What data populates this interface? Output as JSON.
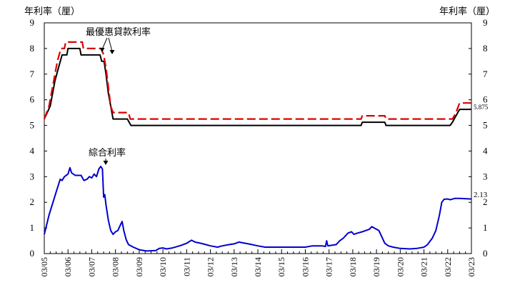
{
  "chart_data": {
    "type": "line",
    "y_unit_label": "年利率（厘）",
    "ylim": [
      0,
      9
    ],
    "yticks": [
      0,
      1,
      2,
      3,
      4,
      5,
      6,
      7,
      8,
      9
    ],
    "xlim": [
      2005.0,
      2023.0
    ],
    "x_tick_labels": [
      "03/05",
      "03/06",
      "03/07",
      "03/08",
      "03/09",
      "03/10",
      "03/11",
      "03/12",
      "03/13",
      "03/14",
      "03/15",
      "03/16",
      "03/17",
      "03/18",
      "03/19",
      "03/20",
      "03/21",
      "03/22",
      "03/23"
    ],
    "x_tick_values": [
      2005,
      2006,
      2007,
      2008,
      2009,
      2010,
      2011,
      2012,
      2013,
      2014,
      2015,
      2016,
      2017,
      2018,
      2019,
      2020,
      2021,
      2022,
      2023
    ],
    "annotations": {
      "prime_label": "最優惠貸款利率",
      "composite_label": "綜合利率",
      "prime_end_value": "5.875",
      "composite_end_value": "2.13"
    },
    "series": [
      {
        "key": "prime_low",
        "color": "#000000",
        "style": "solid",
        "points": [
          [
            2005.0,
            5.25
          ],
          [
            2005.25,
            5.75
          ],
          [
            2005.45,
            6.75
          ],
          [
            2005.6,
            7.25
          ],
          [
            2005.75,
            7.75
          ],
          [
            2005.95,
            7.75
          ],
          [
            2006.0,
            8.0
          ],
          [
            2006.5,
            8.0
          ],
          [
            2006.55,
            7.75
          ],
          [
            2007.35,
            7.75
          ],
          [
            2007.42,
            7.5
          ],
          [
            2007.52,
            7.5
          ],
          [
            2007.6,
            7.0
          ],
          [
            2007.7,
            6.25
          ],
          [
            2007.8,
            5.75
          ],
          [
            2007.9,
            5.25
          ],
          [
            2008.5,
            5.25
          ],
          [
            2008.65,
            5.0
          ],
          [
            2018.35,
            5.0
          ],
          [
            2018.4,
            5.125
          ],
          [
            2019.35,
            5.125
          ],
          [
            2019.4,
            5.0
          ],
          [
            2022.0,
            5.0
          ],
          [
            2022.1,
            5.0
          ],
          [
            2022.2,
            5.125
          ],
          [
            2022.5,
            5.625
          ],
          [
            2023.0,
            5.625
          ]
        ]
      },
      {
        "key": "prime_high",
        "color": "#dd0000",
        "style": "dashed",
        "points": [
          [
            2005.0,
            5.25
          ],
          [
            2005.2,
            5.75
          ],
          [
            2005.4,
            6.75
          ],
          [
            2005.55,
            7.5
          ],
          [
            2005.7,
            8.0
          ],
          [
            2005.85,
            8.0
          ],
          [
            2005.9,
            8.25
          ],
          [
            2006.6,
            8.25
          ],
          [
            2006.65,
            8.0
          ],
          [
            2007.4,
            8.0
          ],
          [
            2007.5,
            7.75
          ],
          [
            2007.6,
            7.25
          ],
          [
            2007.7,
            6.5
          ],
          [
            2007.8,
            5.75
          ],
          [
            2007.9,
            5.5
          ],
          [
            2008.55,
            5.5
          ],
          [
            2008.62,
            5.25
          ],
          [
            2018.35,
            5.25
          ],
          [
            2018.4,
            5.375
          ],
          [
            2019.35,
            5.375
          ],
          [
            2019.4,
            5.25
          ],
          [
            2022.2,
            5.25
          ],
          [
            2022.35,
            5.5
          ],
          [
            2022.5,
            5.875
          ],
          [
            2023.0,
            5.875
          ]
        ]
      },
      {
        "key": "composite",
        "color": "#0000cc",
        "style": "solid",
        "points": [
          [
            2005.0,
            0.75
          ],
          [
            2005.2,
            1.5
          ],
          [
            2005.5,
            2.4
          ],
          [
            2005.67,
            2.9
          ],
          [
            2005.75,
            2.85
          ],
          [
            2005.85,
            3.0
          ],
          [
            2006.0,
            3.1
          ],
          [
            2006.08,
            3.35
          ],
          [
            2006.15,
            3.15
          ],
          [
            2006.3,
            3.05
          ],
          [
            2006.55,
            3.05
          ],
          [
            2006.67,
            2.85
          ],
          [
            2006.8,
            2.9
          ],
          [
            2006.9,
            3.0
          ],
          [
            2007.0,
            2.95
          ],
          [
            2007.1,
            3.1
          ],
          [
            2007.2,
            3.0
          ],
          [
            2007.3,
            3.3
          ],
          [
            2007.38,
            3.4
          ],
          [
            2007.45,
            3.3
          ],
          [
            2007.5,
            2.2
          ],
          [
            2007.55,
            2.3
          ],
          [
            2007.6,
            1.9
          ],
          [
            2007.7,
            1.3
          ],
          [
            2007.8,
            0.9
          ],
          [
            2007.9,
            0.75
          ],
          [
            2008.0,
            0.85
          ],
          [
            2008.1,
            0.9
          ],
          [
            2008.2,
            1.1
          ],
          [
            2008.28,
            1.25
          ],
          [
            2008.35,
            0.9
          ],
          [
            2008.45,
            0.55
          ],
          [
            2008.55,
            0.35
          ],
          [
            2008.75,
            0.25
          ],
          [
            2009.0,
            0.15
          ],
          [
            2009.3,
            0.1
          ],
          [
            2009.7,
            0.12
          ],
          [
            2009.85,
            0.2
          ],
          [
            2010.0,
            0.22
          ],
          [
            2010.15,
            0.18
          ],
          [
            2010.4,
            0.22
          ],
          [
            2010.7,
            0.3
          ],
          [
            2011.0,
            0.4
          ],
          [
            2011.2,
            0.52
          ],
          [
            2011.35,
            0.45
          ],
          [
            2011.6,
            0.4
          ],
          [
            2011.8,
            0.35
          ],
          [
            2012.0,
            0.3
          ],
          [
            2012.3,
            0.25
          ],
          [
            2012.5,
            0.3
          ],
          [
            2012.8,
            0.35
          ],
          [
            2013.0,
            0.38
          ],
          [
            2013.2,
            0.45
          ],
          [
            2013.35,
            0.42
          ],
          [
            2013.6,
            0.38
          ],
          [
            2014.0,
            0.3
          ],
          [
            2014.3,
            0.25
          ],
          [
            2015.0,
            0.25
          ],
          [
            2015.5,
            0.25
          ],
          [
            2016.0,
            0.25
          ],
          [
            2016.3,
            0.3
          ],
          [
            2016.7,
            0.3
          ],
          [
            2016.85,
            0.28
          ],
          [
            2016.9,
            0.5
          ],
          [
            2016.95,
            0.3
          ],
          [
            2017.3,
            0.35
          ],
          [
            2017.45,
            0.5
          ],
          [
            2017.6,
            0.6
          ],
          [
            2017.8,
            0.8
          ],
          [
            2017.95,
            0.85
          ],
          [
            2018.05,
            0.75
          ],
          [
            2018.2,
            0.8
          ],
          [
            2018.4,
            0.85
          ],
          [
            2018.55,
            0.9
          ],
          [
            2018.7,
            0.95
          ],
          [
            2018.8,
            1.05
          ],
          [
            2018.9,
            1.0
          ],
          [
            2019.1,
            0.9
          ],
          [
            2019.2,
            0.7
          ],
          [
            2019.35,
            0.4
          ],
          [
            2019.5,
            0.3
          ],
          [
            2019.7,
            0.25
          ],
          [
            2020.0,
            0.2
          ],
          [
            2020.4,
            0.18
          ],
          [
            2020.7,
            0.2
          ],
          [
            2021.0,
            0.25
          ],
          [
            2021.15,
            0.35
          ],
          [
            2021.35,
            0.6
          ],
          [
            2021.5,
            0.9
          ],
          [
            2021.65,
            1.5
          ],
          [
            2021.75,
            2.0
          ],
          [
            2021.85,
            2.12
          ],
          [
            2022.0,
            2.13
          ],
          [
            2022.1,
            2.1
          ],
          [
            2022.3,
            2.15
          ],
          [
            2022.5,
            2.15
          ],
          [
            2023.0,
            2.13
          ]
        ]
      }
    ]
  }
}
